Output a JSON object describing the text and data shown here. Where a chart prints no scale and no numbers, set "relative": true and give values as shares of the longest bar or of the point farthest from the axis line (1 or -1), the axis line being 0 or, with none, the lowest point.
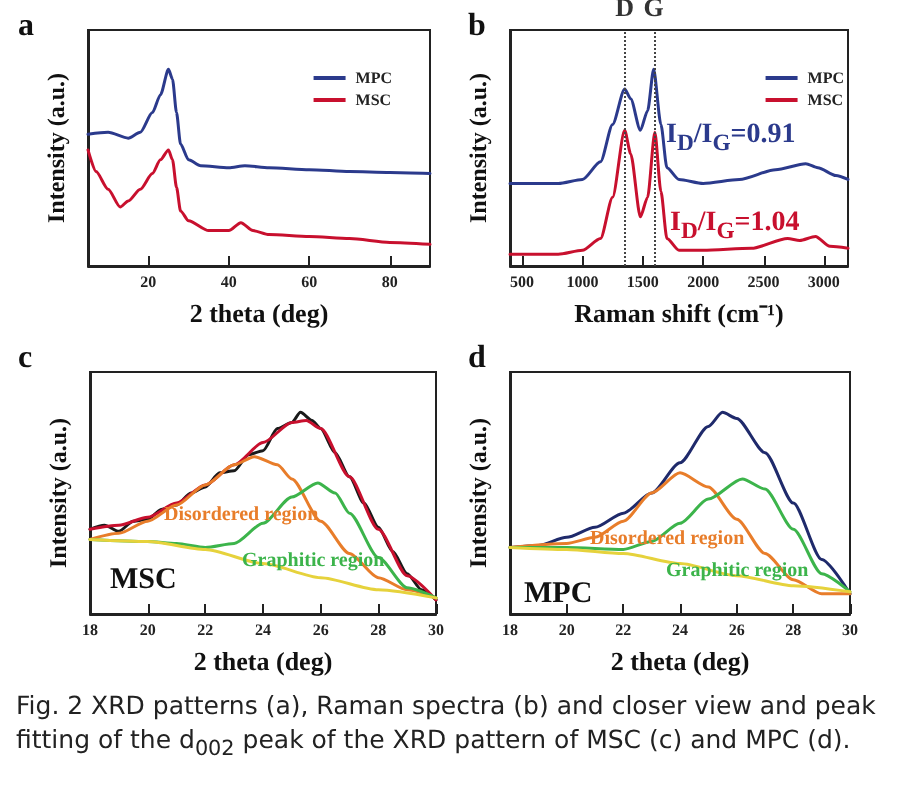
{
  "chart_data": [
    {
      "type": "line",
      "title": "a",
      "xlabel": "2 theta (deg)",
      "ylabel": "Intensity (a.u.)",
      "relative": true,
      "xlim": [
        5,
        90
      ],
      "xticks": [
        20,
        40,
        60,
        80
      ],
      "legend": "top right",
      "grid": false,
      "series": [
        {
          "name": "MPC",
          "color": "#2b3a8c",
          "x": [
            5,
            10,
            15,
            18,
            21,
            23,
            25,
            26,
            27,
            28,
            30,
            33,
            40,
            44,
            50,
            60,
            70,
            80,
            90
          ],
          "values": [
            0.67,
            0.68,
            0.65,
            0.68,
            0.78,
            0.87,
            1.0,
            0.95,
            0.78,
            0.62,
            0.54,
            0.51,
            0.5,
            0.51,
            0.5,
            0.49,
            0.48,
            0.475,
            0.47
          ]
        },
        {
          "name": "MSC",
          "color": "#c8102e",
          "x": [
            5,
            7,
            10,
            13,
            15,
            18,
            21,
            23,
            25,
            26,
            27,
            28,
            30,
            35,
            40,
            43,
            46,
            50,
            60,
            70,
            80,
            90
          ],
          "values": [
            0.59,
            0.48,
            0.39,
            0.3,
            0.33,
            0.39,
            0.47,
            0.54,
            0.59,
            0.54,
            0.4,
            0.28,
            0.23,
            0.18,
            0.18,
            0.22,
            0.18,
            0.16,
            0.15,
            0.14,
            0.12,
            0.11
          ]
        }
      ]
    },
    {
      "type": "line",
      "title": "b",
      "xlabel": "Raman shift (cm⁻¹)",
      "ylabel": "Intensity (a.u.)",
      "relative": true,
      "xlim": [
        400,
        3200
      ],
      "xticks": [
        500,
        1000,
        1500,
        2000,
        2500,
        3000
      ],
      "legend": "top right",
      "grid": false,
      "ref_lines": [
        {
          "axis": "x",
          "value": 1350,
          "label": "D",
          "color": "#444444",
          "line_style": "dotted"
        },
        {
          "axis": "x",
          "value": 1590,
          "label": "G",
          "color": "#444444",
          "line_style": "dotted"
        }
      ],
      "annotations": [
        "I$_{D}$/I$_{G}$=0.91",
        "I$_{D}$/I$_{G}$=1.04"
      ],
      "series": [
        {
          "name": "MPC",
          "color": "#2b3a8c",
          "x": [
            400,
            800,
            1000,
            1150,
            1250,
            1350,
            1400,
            1480,
            1540,
            1590,
            1650,
            1700,
            1800,
            2000,
            2300,
            2600,
            2850,
            2950,
            3100,
            3200
          ],
          "values": [
            0.42,
            0.42,
            0.44,
            0.53,
            0.72,
            0.9,
            0.85,
            0.69,
            0.79,
            1.0,
            0.72,
            0.5,
            0.44,
            0.42,
            0.44,
            0.49,
            0.52,
            0.5,
            0.46,
            0.44
          ]
        },
        {
          "name": "MSC",
          "color": "#c8102e",
          "x": [
            400,
            800,
            1000,
            1150,
            1250,
            1350,
            1400,
            1480,
            1540,
            1600,
            1650,
            1700,
            1800,
            2000,
            2400,
            2700,
            2800,
            2930,
            3050,
            3200
          ],
          "values": [
            0.06,
            0.06,
            0.08,
            0.14,
            0.35,
            0.69,
            0.57,
            0.25,
            0.35,
            0.68,
            0.38,
            0.14,
            0.08,
            0.08,
            0.09,
            0.14,
            0.13,
            0.15,
            0.1,
            0.09
          ]
        }
      ]
    },
    {
      "type": "line",
      "title": "c",
      "xlabel": "2 theta (deg)",
      "ylabel": "Intensity (a.u.)",
      "relative": true,
      "xlim": [
        18,
        30
      ],
      "xticks": [
        18,
        20,
        22,
        24,
        26,
        28,
        30
      ],
      "legend": false,
      "grid": false,
      "annotations": [
        "MSC",
        "Disordered region",
        "Graphitic region"
      ],
      "series": [
        {
          "color": "#1a1a1a",
          "x": [
            18,
            18.5,
            19,
            19.5,
            20,
            20.5,
            21,
            21.5,
            22,
            22.5,
            23,
            23.5,
            24,
            24.5,
            25,
            25.3,
            25.7,
            26,
            26.5,
            27,
            27.5,
            28,
            28.5,
            29,
            29.5,
            30
          ],
          "values": [
            0.42,
            0.44,
            0.41,
            0.46,
            0.47,
            0.52,
            0.54,
            0.6,
            0.63,
            0.7,
            0.71,
            0.79,
            0.81,
            0.92,
            0.95,
            1.0,
            0.96,
            0.92,
            0.8,
            0.68,
            0.55,
            0.43,
            0.31,
            0.2,
            0.12,
            0.07
          ]
        },
        {
          "color": "#c8102e",
          "x": [
            18,
            19,
            20,
            21,
            22,
            23,
            24,
            25,
            25.5,
            26,
            27,
            28,
            29,
            30
          ],
          "values": [
            0.42,
            0.44,
            0.48,
            0.55,
            0.64,
            0.74,
            0.85,
            0.95,
            0.96,
            0.92,
            0.68,
            0.42,
            0.19,
            0.07
          ]
        },
        {
          "color": "#e87d2a",
          "x": [
            18,
            19,
            20,
            21,
            22,
            23,
            23.7,
            24.5,
            25,
            26,
            27,
            28,
            29,
            30
          ],
          "values": [
            0.37,
            0.4,
            0.46,
            0.54,
            0.64,
            0.74,
            0.78,
            0.74,
            0.67,
            0.46,
            0.3,
            0.18,
            0.12,
            0.08
          ]
        },
        {
          "color": "#3cb44b",
          "x": [
            18,
            20,
            21,
            22,
            23,
            24,
            25,
            25.9,
            26.5,
            27,
            28,
            29,
            30
          ],
          "values": [
            0.37,
            0.36,
            0.35,
            0.33,
            0.35,
            0.45,
            0.58,
            0.65,
            0.6,
            0.5,
            0.28,
            0.13,
            0.08
          ]
        },
        {
          "color": "#e6d23c",
          "x": [
            18,
            20,
            22,
            24,
            26,
            28,
            30
          ],
          "values": [
            0.37,
            0.36,
            0.32,
            0.25,
            0.18,
            0.12,
            0.08
          ]
        }
      ]
    },
    {
      "type": "line",
      "title": "d",
      "xlabel": "2 theta (deg)",
      "ylabel": "Intensity (a.u.)",
      "relative": true,
      "xlim": [
        18,
        30
      ],
      "xticks": [
        18,
        20,
        22,
        24,
        26,
        28,
        30
      ],
      "legend": false,
      "grid": false,
      "annotations": [
        "MPC",
        "Fig. 2  XRD patterns (a), Raman spectra (b) and closer view and peak fitting of the d$_{002}$ peak of the XRD pattern of MSC (c) and MPC (d).",
        "Disordered region",
        "Graphitic region"
      ],
      "series": [
        {
          "color": "#1f2a6b",
          "x": [
            18,
            19,
            20,
            21,
            22,
            23,
            24,
            25,
            25.5,
            26,
            27,
            28,
            29,
            30
          ],
          "values": [
            0.33,
            0.34,
            0.38,
            0.43,
            0.5,
            0.6,
            0.75,
            0.93,
            1.0,
            0.97,
            0.8,
            0.55,
            0.27,
            0.1
          ]
        },
        {
          "color": "#e87d2a",
          "x": [
            18,
            20,
            21,
            22,
            23,
            24,
            25,
            26,
            27,
            28,
            29,
            30
          ],
          "values": [
            0.33,
            0.35,
            0.38,
            0.46,
            0.6,
            0.7,
            0.63,
            0.47,
            0.3,
            0.17,
            0.1,
            0.1
          ]
        },
        {
          "color": "#3cb44b",
          "x": [
            18,
            20,
            22,
            23,
            24,
            25,
            26.2,
            27,
            28,
            29,
            30
          ],
          "values": [
            0.33,
            0.33,
            0.32,
            0.36,
            0.45,
            0.57,
            0.67,
            0.62,
            0.42,
            0.2,
            0.11
          ]
        },
        {
          "color": "#e6d23c",
          "x": [
            18,
            20,
            22,
            24,
            26,
            28,
            30
          ],
          "values": [
            0.33,
            0.32,
            0.3,
            0.25,
            0.19,
            0.14,
            0.11
          ]
        }
      ]
    }
  ]
}
